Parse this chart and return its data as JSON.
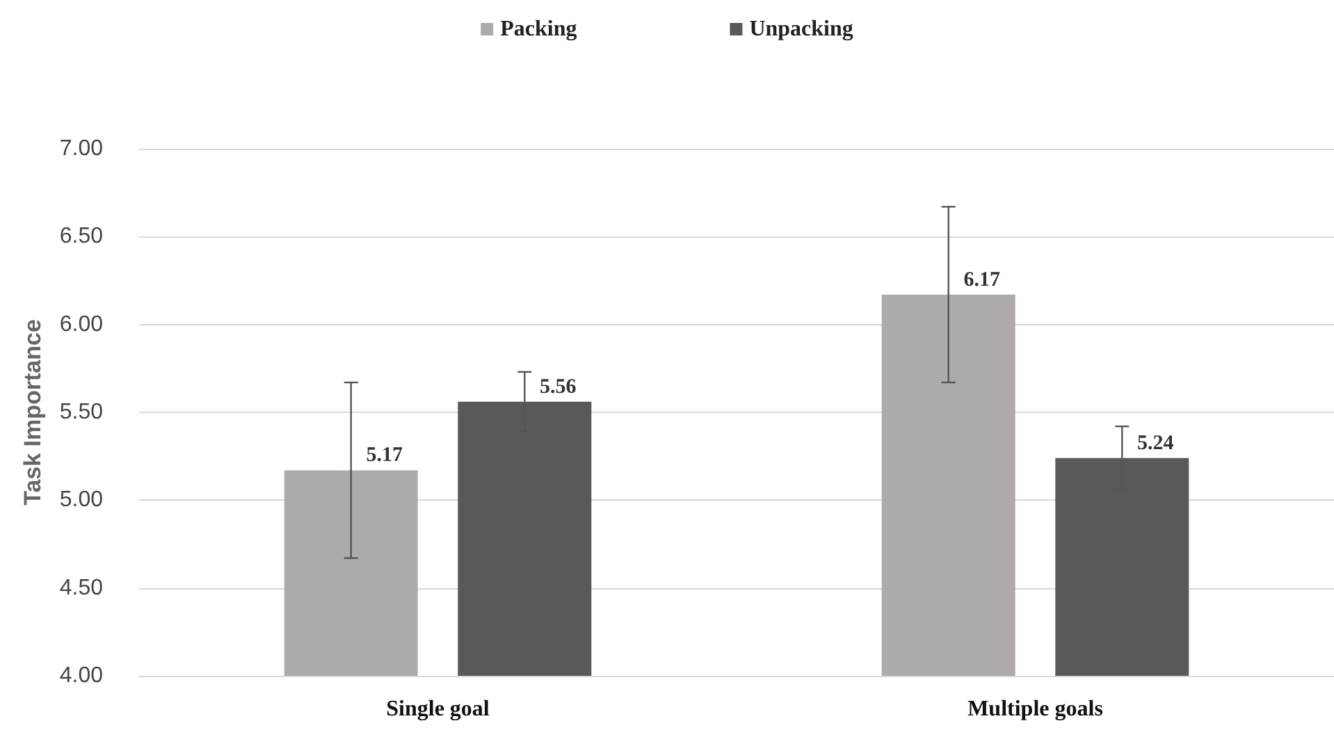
{
  "chart_data": {
    "type": "bar",
    "ylabel": "Task Importance",
    "categories": [
      "Single goal",
      "Multiple goals"
    ],
    "series": [
      {
        "name": "Packing",
        "color": "#aeaaaa",
        "values": [
          5.17,
          6.17
        ],
        "errors": [
          0.5,
          0.5
        ]
      },
      {
        "name": "Unpacking",
        "color": "#595959",
        "values": [
          5.56,
          5.24
        ],
        "errors": [
          0.17,
          0.18
        ]
      }
    ],
    "ylim": [
      4,
      7
    ],
    "yticks": [
      {
        "value": 4,
        "label": "4.00"
      },
      {
        "value": 4.5,
        "label": "4.50"
      },
      {
        "value": 5,
        "label": "5.00"
      },
      {
        "value": 5.5,
        "label": "5.50"
      },
      {
        "value": 6,
        "label": "6.00"
      },
      {
        "value": 6.5,
        "label": "6.50"
      },
      {
        "value": 7,
        "label": "7.00"
      }
    ],
    "grid": "y",
    "legend": "top",
    "data_labels": true
  }
}
